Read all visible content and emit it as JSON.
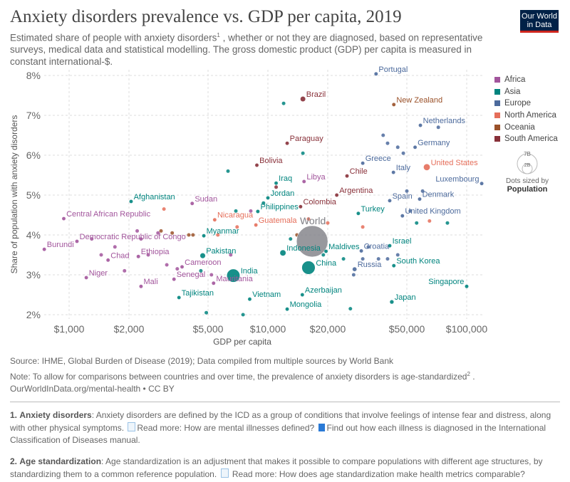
{
  "header": {
    "title": "Anxiety disorders prevalence vs. GDP per capita, 2019",
    "subtitle_pre": "Estimated share of people with anxiety disorders",
    "subtitle_sup": "1",
    "subtitle_post": " , whether or not they are diagnosed, based on representative surveys, medical data and statistical modelling. The gross domestic product (GDP) per capita is measured in constant international-$.",
    "logo": "Our World in Data"
  },
  "chart_data": {
    "type": "scatter",
    "xlabel": "GDP per capita",
    "ylabel": "Share of population with anxiety disorders",
    "x_scale": "log",
    "xlim": [
      750,
      125000
    ],
    "ylim": [
      1.9,
      8.1
    ],
    "x_ticks": [
      {
        "v": 1000,
        "label": "$1,000"
      },
      {
        "v": 2000,
        "label": "$2,000"
      },
      {
        "v": 5000,
        "label": "$5,000"
      },
      {
        "v": 10000,
        "label": "$10,000"
      },
      {
        "v": 20000,
        "label": "$20,000"
      },
      {
        "v": 50000,
        "label": "$50,000"
      },
      {
        "v": 100000,
        "label": "$100,000"
      }
    ],
    "y_ticks": [
      {
        "v": 2,
        "label": "2%"
      },
      {
        "v": 3,
        "label": "3%"
      },
      {
        "v": 4,
        "label": "4%"
      },
      {
        "v": 5,
        "label": "5%"
      },
      {
        "v": 6,
        "label": "6%"
      },
      {
        "v": 7,
        "label": "7%"
      },
      {
        "v": 8,
        "label": "8%"
      }
    ],
    "grid": true,
    "legend": {
      "placement": "right",
      "items": [
        {
          "name": "Africa",
          "color": "#a2559c"
        },
        {
          "name": "Asia",
          "color": "#00847e"
        },
        {
          "name": "Europe",
          "color": "#4c6a9c"
        },
        {
          "name": "North America",
          "color": "#e56e5a"
        },
        {
          "name": "Oceania",
          "color": "#9a5129"
        },
        {
          "name": "South America",
          "color": "#883039"
        }
      ]
    },
    "size_legend": {
      "big": "7B",
      "small": "2B",
      "label_pre": "Dots sized by",
      "label_var": "Population"
    },
    "points": [
      {
        "name": "Portugal",
        "gdp": 35000,
        "share": 8.04,
        "region": "Europe",
        "pop": 0.01
      },
      {
        "name": "Brazil",
        "gdp": 15000,
        "share": 7.41,
        "region": "South America",
        "pop": 0.21
      },
      {
        "name": "New Zealand",
        "gdp": 43000,
        "share": 7.27,
        "region": "Oceania",
        "pop": 0.005
      },
      {
        "name": "Netherlands",
        "gdp": 58500,
        "share": 6.75,
        "region": "Europe",
        "pop": 0.017
      },
      {
        "name": "Germany",
        "gdp": 55000,
        "share": 6.2,
        "region": "Europe",
        "pop": 0.083
      },
      {
        "name": "Paraguay",
        "gdp": 12500,
        "share": 6.3,
        "region": "South America",
        "pop": 0.007
      },
      {
        "name": "Bolivia",
        "gdp": 8800,
        "share": 5.75,
        "region": "South America",
        "pop": 0.011
      },
      {
        "name": "Greece",
        "gdp": 30000,
        "share": 5.8,
        "region": "Europe",
        "pop": 0.01
      },
      {
        "name": "United States",
        "gdp": 63000,
        "share": 5.7,
        "region": "North America",
        "pop": 0.33
      },
      {
        "name": "Italy",
        "gdp": 42800,
        "share": 5.57,
        "region": "Europe",
        "pop": 0.06
      },
      {
        "name": "Libya",
        "gdp": 15200,
        "share": 5.34,
        "region": "Africa",
        "pop": 0.007
      },
      {
        "name": "Iraq",
        "gdp": 11000,
        "share": 5.3,
        "region": "Asia",
        "pop": 0.04
      },
      {
        "name": "Chile",
        "gdp": 25000,
        "share": 5.48,
        "region": "South America",
        "pop": 0.019
      },
      {
        "name": "Luxembourg",
        "gdp": 119000,
        "share": 5.29,
        "region": "Europe",
        "pop": 0.001
      },
      {
        "name": "Jordan",
        "gdp": 10000,
        "share": 4.93,
        "region": "Asia",
        "pop": 0.01
      },
      {
        "name": "Afghanistan",
        "gdp": 2050,
        "share": 4.84,
        "region": "Asia",
        "pop": 0.038
      },
      {
        "name": "Argentina",
        "gdp": 22200,
        "share": 5.0,
        "region": "South America",
        "pop": 0.045
      },
      {
        "name": "Spain",
        "gdp": 41000,
        "share": 4.86,
        "region": "Europe",
        "pop": 0.047
      },
      {
        "name": "Denmark",
        "gdp": 58000,
        "share": 4.9,
        "region": "Europe",
        "pop": 0.006
      },
      {
        "name": "Sudan",
        "gdp": 4160,
        "share": 4.79,
        "region": "Africa",
        "pop": 0.043
      },
      {
        "name": "Colombia",
        "gdp": 14600,
        "share": 4.71,
        "region": "South America",
        "pop": 0.05
      },
      {
        "name": "Philippines",
        "gdp": 8900,
        "share": 4.59,
        "region": "Asia",
        "pop": 0.11
      },
      {
        "name": "Turkey",
        "gdp": 28500,
        "share": 4.54,
        "region": "Asia",
        "pop": 0.083
      },
      {
        "name": "United Kingdom",
        "gdp": 47500,
        "share": 4.48,
        "region": "Europe",
        "pop": 0.067
      },
      {
        "name": "Central African Republic",
        "gdp": 940,
        "share": 4.41,
        "region": "Africa",
        "pop": 0.005
      },
      {
        "name": "Nicaragua",
        "gdp": 5400,
        "share": 4.38,
        "region": "North America",
        "pop": 0.007
      },
      {
        "name": "Guatemala",
        "gdp": 8700,
        "share": 4.25,
        "region": "North America",
        "pop": 0.017
      },
      {
        "name": "Myanmar",
        "gdp": 4760,
        "share": 3.98,
        "region": "Asia",
        "pop": 0.054
      },
      {
        "name": "Democratic Republic of Congo",
        "gdp": 1095,
        "share": 3.84,
        "region": "Africa",
        "pop": 0.087
      },
      {
        "name": "World",
        "gdp": 16700,
        "share": 3.84,
        "region": "World",
        "pop": 7.7
      },
      {
        "name": "Burundi",
        "gdp": 750,
        "share": 3.64,
        "region": "Africa",
        "pop": 0.012
      },
      {
        "name": "Israel",
        "gdp": 41000,
        "share": 3.73,
        "region": "Asia",
        "pop": 0.009
      },
      {
        "name": "Indonesia",
        "gdp": 11900,
        "share": 3.55,
        "region": "Asia",
        "pop": 0.27
      },
      {
        "name": "Maldives",
        "gdp": 19600,
        "share": 3.59,
        "region": "Asia",
        "pop": 0.0005
      },
      {
        "name": "Pakistan",
        "gdp": 4700,
        "share": 3.48,
        "region": "Asia",
        "pop": 0.22
      },
      {
        "name": "Ethiopia",
        "gdp": 2230,
        "share": 3.46,
        "region": "Africa",
        "pop": 0.11
      },
      {
        "name": "Chad",
        "gdp": 1570,
        "share": 3.37,
        "region": "Africa",
        "pop": 0.016
      },
      {
        "name": "Croatia",
        "gdp": 29500,
        "share": 3.6,
        "region": "Europe",
        "pop": 0.004
      },
      {
        "name": "China",
        "gdp": 16000,
        "share": 3.18,
        "region": "Asia",
        "pop": 1.4
      },
      {
        "name": "Cameroon",
        "gdp": 3700,
        "share": 3.2,
        "region": "Africa",
        "pop": 0.026
      },
      {
        "name": "South Korea",
        "gdp": 43000,
        "share": 3.23,
        "region": "Asia",
        "pop": 0.052
      },
      {
        "name": "Russia",
        "gdp": 27300,
        "share": 3.14,
        "region": "Europe",
        "pop": 0.145
      },
      {
        "name": "India",
        "gdp": 6700,
        "share": 2.98,
        "region": "Asia",
        "pop": 1.37
      },
      {
        "name": "Niger",
        "gdp": 1220,
        "share": 2.93,
        "region": "Africa",
        "pop": 0.023
      },
      {
        "name": "Senegal",
        "gdp": 3370,
        "share": 2.89,
        "region": "Africa",
        "pop": 0.016
      },
      {
        "name": "Mauritania",
        "gdp": 5330,
        "share": 2.79,
        "region": "Africa",
        "pop": 0.0045
      },
      {
        "name": "Mali",
        "gdp": 2300,
        "share": 2.71,
        "region": "Africa",
        "pop": 0.02
      },
      {
        "name": "Singapore",
        "gdp": 100000,
        "share": 2.71,
        "region": "Asia",
        "pop": 0.0058
      },
      {
        "name": "Tajikistan",
        "gdp": 3570,
        "share": 2.43,
        "region": "Asia",
        "pop": 0.009
      },
      {
        "name": "Azerbaijan",
        "gdp": 14900,
        "share": 2.5,
        "region": "Asia",
        "pop": 0.01
      },
      {
        "name": "Japan",
        "gdp": 42000,
        "share": 2.32,
        "region": "Asia",
        "pop": 0.126
      },
      {
        "name": "Vietnam",
        "gdp": 8100,
        "share": 2.39,
        "region": "Asia",
        "pop": 0.097
      },
      {
        "name": "Mongolia",
        "gdp": 12500,
        "share": 2.14,
        "region": "Asia",
        "pop": 0.003
      }
    ],
    "unlabeled_points": [
      [
        1300,
        3.9,
        "Africa"
      ],
      [
        1450,
        3.5,
        "Africa"
      ],
      [
        1700,
        3.7,
        "Africa"
      ],
      [
        1900,
        3.1,
        "Africa"
      ],
      [
        2200,
        4.1,
        "Africa"
      ],
      [
        2300,
        3.9,
        "Africa"
      ],
      [
        2500,
        3.5,
        "Africa"
      ],
      [
        2800,
        4.05,
        "Africa"
      ],
      [
        3100,
        3.25,
        "Africa"
      ],
      [
        3500,
        3.15,
        "Africa"
      ],
      [
        4000,
        4.0,
        "Oceania"
      ],
      [
        4200,
        4.0,
        "Oceania"
      ],
      [
        3300,
        4.05,
        "Oceania"
      ],
      [
        2900,
        4.1,
        "Oceania"
      ],
      [
        3000,
        4.65,
        "North America"
      ],
      [
        5600,
        4.0,
        "North America"
      ],
      [
        7000,
        4.2,
        "North America"
      ],
      [
        6500,
        3.5,
        "Africa"
      ],
      [
        5200,
        3.0,
        "Africa"
      ],
      [
        4600,
        3.1,
        "Asia"
      ],
      [
        4900,
        2.05,
        "Asia"
      ],
      [
        6900,
        4.6,
        "Asia"
      ],
      [
        6300,
        5.6,
        "Asia"
      ],
      [
        7500,
        2.0,
        "Asia"
      ],
      [
        8200,
        4.6,
        "Africa"
      ],
      [
        9500,
        4.8,
        "Asia"
      ],
      [
        11000,
        5.2,
        "South America"
      ],
      [
        12000,
        7.3,
        "Asia"
      ],
      [
        15000,
        6.05,
        "Asia"
      ],
      [
        13000,
        3.9,
        "Asia"
      ],
      [
        14000,
        4.0,
        "Oceania"
      ],
      [
        16000,
        4.4,
        "North America"
      ],
      [
        19000,
        3.5,
        "Asia"
      ],
      [
        20000,
        4.3,
        "North America"
      ],
      [
        24000,
        3.4,
        "Asia"
      ],
      [
        26000,
        2.15,
        "Asia"
      ],
      [
        30000,
        4.2,
        "North America"
      ],
      [
        32000,
        3.7,
        "Europe"
      ],
      [
        36000,
        3.4,
        "Europe"
      ],
      [
        38000,
        6.5,
        "Europe"
      ],
      [
        40000,
        6.3,
        "Europe"
      ],
      [
        45000,
        6.2,
        "Europe"
      ],
      [
        48000,
        6.05,
        "Europe"
      ],
      [
        50000,
        5.1,
        "Europe"
      ],
      [
        52000,
        4.6,
        "Europe"
      ],
      [
        56000,
        4.3,
        "Asia"
      ],
      [
        60000,
        5.1,
        "Europe"
      ],
      [
        65000,
        4.35,
        "North America"
      ],
      [
        72000,
        6.7,
        "Europe"
      ],
      [
        80000,
        4.3,
        "Asia"
      ],
      [
        30000,
        3.4,
        "Europe"
      ],
      [
        27000,
        3.0,
        "Europe"
      ],
      [
        45000,
        3.5,
        "Europe"
      ],
      [
        40000,
        3.4,
        "Europe"
      ]
    ],
    "world_color": "#7f7f85"
  },
  "footer": {
    "source": "Source: IHME, Global Burden of Disease (2019); Data compiled from multiple sources by World Bank",
    "note_pre": "Note: To allow for comparisons between countries and over time, the prevalence of anxiety disorders is age-standardized",
    "note_sup": "2",
    "note_post": " .",
    "url": "OurWorldInData.org/mental-health • CC BY"
  },
  "footnotes": [
    {
      "num": "1.",
      "term": "Anxiety disorders",
      "text": ": Anxiety disorders are defined by the ICD as a group of conditions that involve feelings of intense fear and distress, along with other physical symptoms. ",
      "link1": "Read more: How are mental illnesses defined?",
      "link2": "Find out how each illness is diagnosed in the International Classification of Diseases manual."
    },
    {
      "num": "2.",
      "term": "Age standardization",
      "text": ": Age standardization is an adjustment that makes it possible to compare populations with different age structures, by standardizing them to a common reference population. ",
      "link1": "Read more: How does age standardization make health metrics comparable?"
    }
  ]
}
